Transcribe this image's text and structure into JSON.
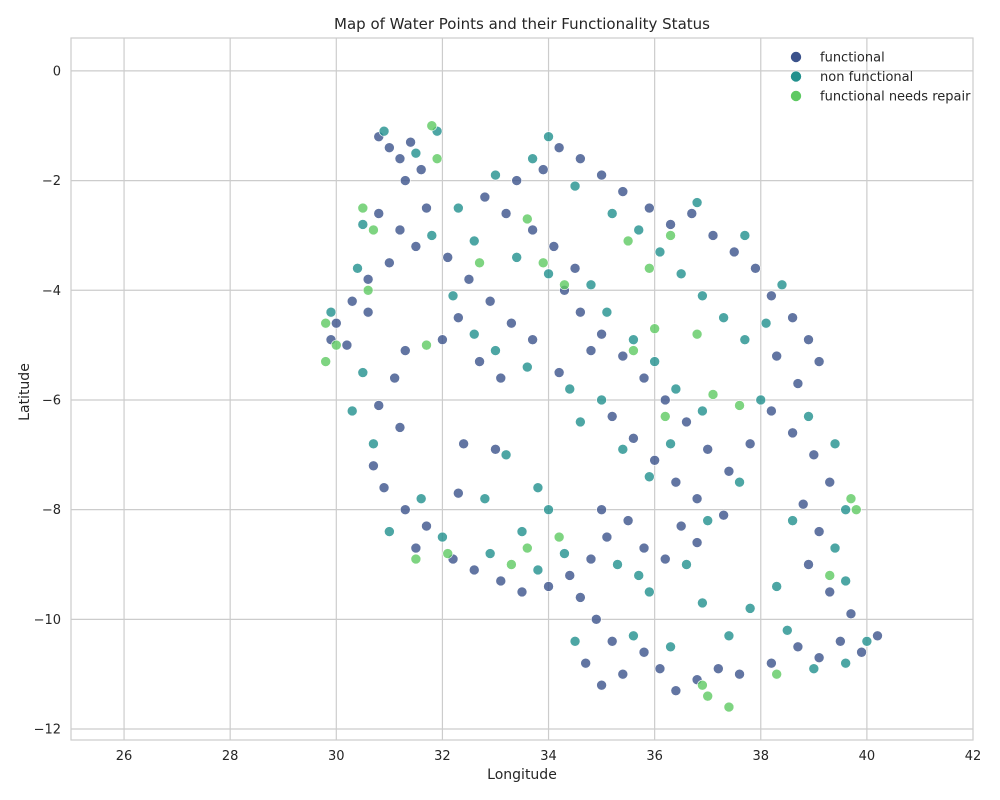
{
  "chart_data": {
    "type": "scatter",
    "title": "Map of Water Points and their Functionality Status",
    "xlabel": "Longitude",
    "ylabel": "Latitude",
    "xlim": [
      25,
      42
    ],
    "ylim": [
      -12.2,
      0.6
    ],
    "xticks": [
      26,
      28,
      30,
      32,
      34,
      36,
      38,
      40,
      42
    ],
    "xtick_labels": [
      "26",
      "28",
      "30",
      "32",
      "34",
      "36",
      "38",
      "40",
      "42"
    ],
    "yticks": [
      0,
      -2,
      -4,
      -6,
      -8,
      -10,
      -12
    ],
    "ytick_labels": [
      "0",
      "−2",
      "−4",
      "−6",
      "−8",
      "−10",
      "−12"
    ],
    "grid": true,
    "legend_position": "top-right",
    "series": [
      {
        "name": "functional",
        "color": "#3b528b",
        "points": [
          [
            30.8,
            -1.2
          ],
          [
            31.0,
            -1.4
          ],
          [
            31.2,
            -1.6
          ],
          [
            31.4,
            -1.3
          ],
          [
            31.6,
            -1.8
          ],
          [
            31.3,
            -2.0
          ],
          [
            30.8,
            -2.6
          ],
          [
            31.2,
            -2.9
          ],
          [
            31.7,
            -2.5
          ],
          [
            31.5,
            -3.2
          ],
          [
            31.0,
            -3.5
          ],
          [
            30.6,
            -3.8
          ],
          [
            30.3,
            -4.2
          ],
          [
            30.0,
            -4.6
          ],
          [
            29.9,
            -4.9
          ],
          [
            30.2,
            -5.0
          ],
          [
            30.6,
            -4.4
          ],
          [
            31.3,
            -5.1
          ],
          [
            31.1,
            -5.6
          ],
          [
            30.8,
            -6.1
          ],
          [
            31.2,
            -6.5
          ],
          [
            30.7,
            -7.2
          ],
          [
            30.9,
            -7.6
          ],
          [
            31.3,
            -8.0
          ],
          [
            31.7,
            -8.3
          ],
          [
            31.5,
            -8.7
          ],
          [
            32.2,
            -8.9
          ],
          [
            32.6,
            -9.1
          ],
          [
            33.1,
            -9.3
          ],
          [
            33.5,
            -9.5
          ],
          [
            34.0,
            -9.4
          ],
          [
            34.4,
            -9.2
          ],
          [
            34.8,
            -8.9
          ],
          [
            35.1,
            -8.5
          ],
          [
            35.0,
            -8.0
          ],
          [
            35.5,
            -8.2
          ],
          [
            35.8,
            -8.7
          ],
          [
            36.2,
            -8.9
          ],
          [
            36.5,
            -8.3
          ],
          [
            36.8,
            -8.6
          ],
          [
            34.6,
            -9.6
          ],
          [
            34.9,
            -10.0
          ],
          [
            35.2,
            -10.4
          ],
          [
            34.7,
            -10.8
          ],
          [
            35.0,
            -11.2
          ],
          [
            35.4,
            -11.0
          ],
          [
            35.8,
            -10.6
          ],
          [
            36.1,
            -10.9
          ],
          [
            36.4,
            -11.3
          ],
          [
            36.8,
            -11.1
          ],
          [
            37.2,
            -10.9
          ],
          [
            37.6,
            -11.0
          ],
          [
            38.2,
            -10.8
          ],
          [
            38.7,
            -10.5
          ],
          [
            39.1,
            -10.7
          ],
          [
            39.5,
            -10.4
          ],
          [
            39.9,
            -10.6
          ],
          [
            40.2,
            -10.3
          ],
          [
            39.7,
            -9.9
          ],
          [
            39.3,
            -9.5
          ],
          [
            38.9,
            -9.0
          ],
          [
            39.1,
            -8.4
          ],
          [
            38.8,
            -7.9
          ],
          [
            39.3,
            -7.5
          ],
          [
            39.0,
            -7.0
          ],
          [
            38.6,
            -6.6
          ],
          [
            38.2,
            -6.2
          ],
          [
            37.8,
            -6.8
          ],
          [
            37.4,
            -7.3
          ],
          [
            37.0,
            -6.9
          ],
          [
            36.6,
            -6.4
          ],
          [
            36.2,
            -6.0
          ],
          [
            35.8,
            -5.6
          ],
          [
            35.4,
            -5.2
          ],
          [
            35.0,
            -4.8
          ],
          [
            34.6,
            -4.4
          ],
          [
            34.3,
            -4.0
          ],
          [
            34.5,
            -3.6
          ],
          [
            34.1,
            -3.2
          ],
          [
            33.7,
            -2.9
          ],
          [
            33.2,
            -2.6
          ],
          [
            32.8,
            -2.3
          ],
          [
            33.4,
            -2.0
          ],
          [
            33.9,
            -1.8
          ],
          [
            34.2,
            -1.4
          ],
          [
            34.6,
            -1.6
          ],
          [
            35.0,
            -1.9
          ],
          [
            35.4,
            -2.2
          ],
          [
            35.9,
            -2.5
          ],
          [
            36.3,
            -2.8
          ],
          [
            36.7,
            -2.6
          ],
          [
            37.1,
            -3.0
          ],
          [
            37.5,
            -3.3
          ],
          [
            37.9,
            -3.6
          ],
          [
            38.2,
            -4.1
          ],
          [
            38.6,
            -4.5
          ],
          [
            38.9,
            -4.9
          ],
          [
            39.1,
            -5.3
          ],
          [
            38.7,
            -5.7
          ],
          [
            38.3,
            -5.2
          ],
          [
            32.1,
            -3.4
          ],
          [
            32.5,
            -3.8
          ],
          [
            32.9,
            -4.2
          ],
          [
            33.3,
            -4.6
          ],
          [
            33.7,
            -4.9
          ],
          [
            32.3,
            -4.5
          ],
          [
            32.0,
            -4.9
          ],
          [
            32.7,
            -5.3
          ],
          [
            33.1,
            -5.6
          ],
          [
            34.2,
            -5.5
          ],
          [
            34.8,
            -5.1
          ],
          [
            35.2,
            -6.3
          ],
          [
            35.6,
            -6.7
          ],
          [
            36.0,
            -7.1
          ],
          [
            36.4,
            -7.5
          ],
          [
            36.8,
            -7.8
          ],
          [
            37.3,
            -8.1
          ],
          [
            32.4,
            -6.8
          ],
          [
            33.0,
            -6.9
          ],
          [
            32.3,
            -7.7
          ]
        ]
      },
      {
        "name": "non functional",
        "color": "#21908d",
        "points": [
          [
            30.9,
            -1.1
          ],
          [
            31.5,
            -1.5
          ],
          [
            31.9,
            -1.1
          ],
          [
            30.5,
            -2.8
          ],
          [
            31.8,
            -3.0
          ],
          [
            30.4,
            -3.6
          ],
          [
            29.9,
            -4.4
          ],
          [
            30.5,
            -5.5
          ],
          [
            30.3,
            -6.2
          ],
          [
            30.7,
            -6.8
          ],
          [
            31.0,
            -8.4
          ],
          [
            31.6,
            -7.8
          ],
          [
            32.0,
            -8.5
          ],
          [
            32.9,
            -8.8
          ],
          [
            33.8,
            -9.1
          ],
          [
            34.3,
            -8.8
          ],
          [
            35.3,
            -9.0
          ],
          [
            35.7,
            -9.2
          ],
          [
            36.6,
            -9.0
          ],
          [
            37.0,
            -8.2
          ],
          [
            34.5,
            -10.4
          ],
          [
            35.6,
            -10.3
          ],
          [
            36.3,
            -10.5
          ],
          [
            37.4,
            -10.3
          ],
          [
            37.8,
            -9.8
          ],
          [
            38.3,
            -9.4
          ],
          [
            38.5,
            -10.2
          ],
          [
            39.0,
            -10.9
          ],
          [
            39.6,
            -10.8
          ],
          [
            40.0,
            -10.4
          ],
          [
            39.6,
            -9.3
          ],
          [
            39.4,
            -8.7
          ],
          [
            38.6,
            -8.2
          ],
          [
            39.6,
            -8.0
          ],
          [
            39.4,
            -6.8
          ],
          [
            38.9,
            -6.3
          ],
          [
            38.0,
            -6.0
          ],
          [
            37.6,
            -7.5
          ],
          [
            36.9,
            -6.2
          ],
          [
            36.4,
            -5.8
          ],
          [
            36.0,
            -5.3
          ],
          [
            35.6,
            -4.9
          ],
          [
            35.1,
            -4.4
          ],
          [
            34.8,
            -3.9
          ],
          [
            34.0,
            -3.7
          ],
          [
            33.4,
            -3.4
          ],
          [
            32.6,
            -3.1
          ],
          [
            32.3,
            -2.5
          ],
          [
            33.0,
            -1.9
          ],
          [
            33.7,
            -1.6
          ],
          [
            34.0,
            -1.2
          ],
          [
            34.5,
            -2.1
          ],
          [
            35.2,
            -2.6
          ],
          [
            35.7,
            -2.9
          ],
          [
            36.1,
            -3.3
          ],
          [
            36.5,
            -3.7
          ],
          [
            36.9,
            -4.1
          ],
          [
            37.3,
            -4.5
          ],
          [
            37.7,
            -4.9
          ],
          [
            38.1,
            -4.6
          ],
          [
            38.4,
            -3.9
          ],
          [
            37.7,
            -3.0
          ],
          [
            36.8,
            -2.4
          ],
          [
            32.2,
            -4.1
          ],
          [
            32.6,
            -4.8
          ],
          [
            33.0,
            -5.1
          ],
          [
            33.6,
            -5.4
          ],
          [
            34.4,
            -5.8
          ],
          [
            35.0,
            -6.0
          ],
          [
            35.4,
            -6.9
          ],
          [
            35.9,
            -7.4
          ],
          [
            36.3,
            -6.8
          ],
          [
            33.2,
            -7.0
          ],
          [
            33.8,
            -7.6
          ],
          [
            32.8,
            -7.8
          ],
          [
            34.6,
            -6.4
          ],
          [
            33.5,
            -8.4
          ],
          [
            34.0,
            -8.0
          ],
          [
            35.9,
            -9.5
          ],
          [
            36.9,
            -9.7
          ]
        ]
      },
      {
        "name": "functional needs repair",
        "color": "#5ec962",
        "points": [
          [
            31.8,
            -1.0
          ],
          [
            31.9,
            -1.6
          ],
          [
            30.5,
            -2.5
          ],
          [
            30.7,
            -2.9
          ],
          [
            29.8,
            -4.6
          ],
          [
            30.0,
            -5.0
          ],
          [
            29.8,
            -5.3
          ],
          [
            30.6,
            -4.0
          ],
          [
            31.7,
            -5.0
          ],
          [
            31.5,
            -8.9
          ],
          [
            32.1,
            -8.8
          ],
          [
            33.6,
            -8.7
          ],
          [
            34.2,
            -8.5
          ],
          [
            33.9,
            -3.5
          ],
          [
            33.6,
            -2.7
          ],
          [
            35.5,
            -3.1
          ],
          [
            35.9,
            -3.6
          ],
          [
            36.3,
            -3.0
          ],
          [
            36.0,
            -4.7
          ],
          [
            36.8,
            -4.8
          ],
          [
            37.1,
            -5.9
          ],
          [
            37.6,
            -6.1
          ],
          [
            36.2,
            -6.3
          ],
          [
            35.6,
            -5.1
          ],
          [
            37.4,
            -11.6
          ],
          [
            37.0,
            -11.4
          ],
          [
            36.9,
            -11.2
          ],
          [
            38.3,
            -11.0
          ],
          [
            39.3,
            -9.2
          ],
          [
            39.8,
            -8.0
          ],
          [
            39.7,
            -7.8
          ],
          [
            33.3,
            -9.0
          ],
          [
            32.7,
            -3.5
          ],
          [
            34.3,
            -3.9
          ]
        ]
      }
    ]
  }
}
